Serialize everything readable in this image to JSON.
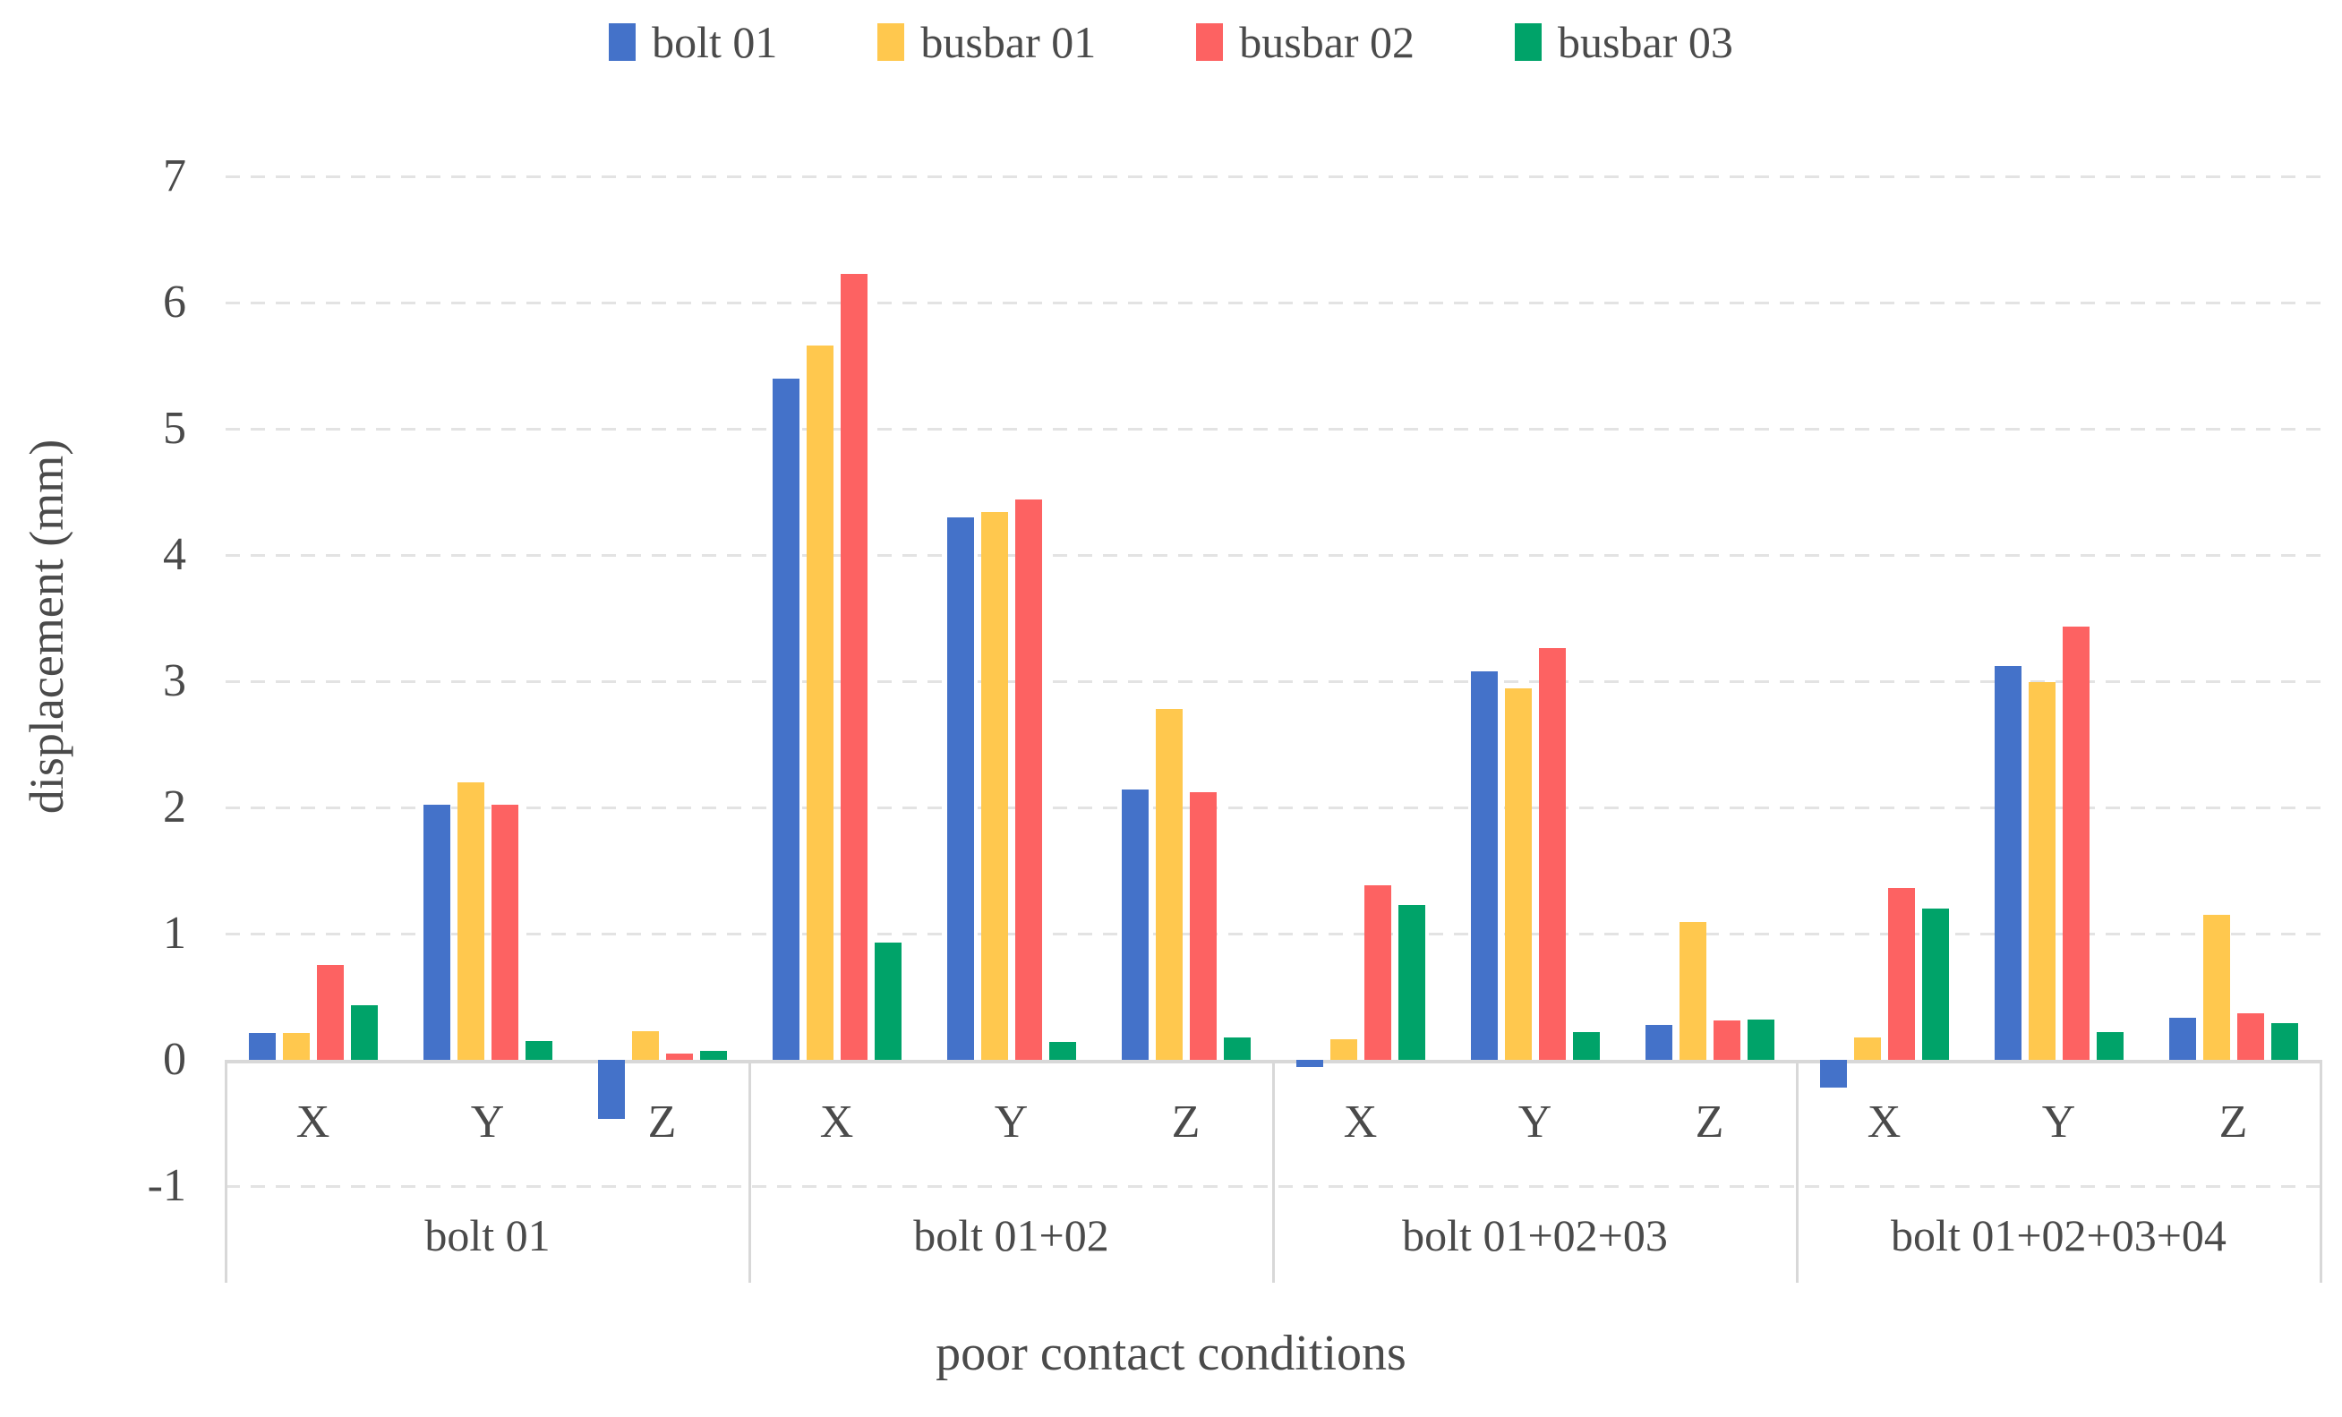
{
  "chart_data": {
    "type": "bar",
    "title": "",
    "xlabel": "poor contact conditions",
    "ylabel": "displacement (mm)",
    "ylim": [
      -1,
      7
    ],
    "yticks": [
      "7",
      "6",
      "5",
      "4",
      "3",
      "2",
      "1",
      "0",
      "-1"
    ],
    "ytick_values": [
      7,
      6,
      5,
      4,
      3,
      2,
      1,
      0,
      -1
    ],
    "grid": "horizontal dashed gridlines on",
    "legend_position": "top-center",
    "groups": [
      "bolt 01",
      "bolt 01+02",
      "bolt 01+02+03",
      "bolt 01+02+03+04"
    ],
    "subcategories": [
      "X",
      "Y",
      "Z"
    ],
    "series": [
      {
        "name": "bolt 01",
        "color": "#4472C9",
        "values": [
          [
            0.21,
            2.02,
            -0.47
          ],
          [
            5.4,
            4.3,
            2.14
          ],
          [
            -0.06,
            3.08,
            0.28
          ],
          [
            -0.22,
            3.12,
            0.33
          ]
        ]
      },
      {
        "name": "busbar 01",
        "color": "#FFC84E",
        "values": [
          [
            0.21,
            2.2,
            0.23
          ],
          [
            5.66,
            4.34,
            2.78
          ],
          [
            0.16,
            2.94,
            1.09
          ],
          [
            0.18,
            2.99,
            1.15
          ]
        ]
      },
      {
        "name": "busbar 02",
        "color": "#FD6262",
        "values": [
          [
            0.75,
            2.02,
            0.05
          ],
          [
            6.23,
            4.44,
            2.12
          ],
          [
            1.38,
            3.26,
            0.31
          ],
          [
            1.36,
            3.43,
            0.37
          ]
        ]
      },
      {
        "name": "busbar 03",
        "color": "#00A369",
        "values": [
          [
            0.43,
            0.15,
            0.07
          ],
          [
            0.93,
            0.14,
            0.18
          ],
          [
            1.23,
            0.22,
            0.32
          ],
          [
            1.2,
            0.22,
            0.29
          ]
        ]
      }
    ],
    "colors": {
      "gridline": "#e3e3e3",
      "axis_line": "#d8d8d8",
      "text": "#4a4a4a"
    }
  }
}
